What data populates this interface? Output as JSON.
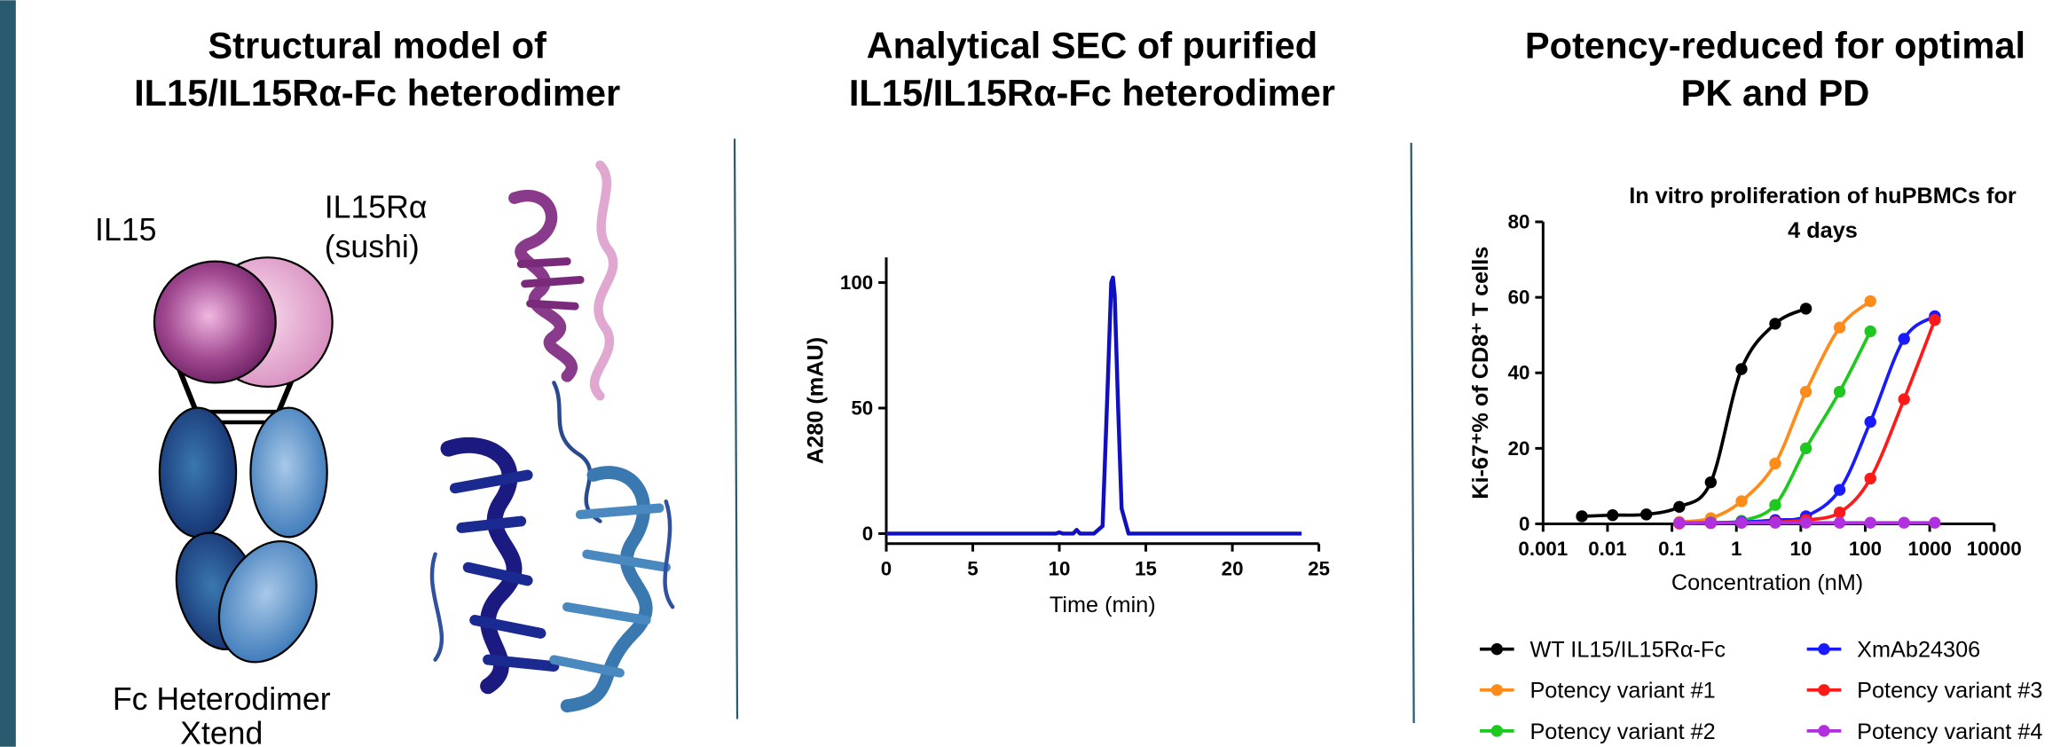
{
  "panels": [
    {
      "title": [
        "Structural model of",
        "IL15/IL15Rα-Fc heterodimer"
      ],
      "labels": {
        "il15": "IL15",
        "il15ra": "IL15Rα",
        "sushi": "(sushi)",
        "fc": "Fc Heterodimer",
        "xtend": "Xtend"
      }
    },
    {
      "title": [
        "Analytical SEC of purified",
        "IL15/IL15Rα-Fc heterodimer"
      ]
    },
    {
      "title": [
        "Potency-reduced for optimal",
        "PK and PD"
      ]
    }
  ],
  "chart_data": [
    {
      "type": "line",
      "xlabel": "Time (min)",
      "ylabel": "A280 (mAU)",
      "color": "#1010c0",
      "x": [
        0,
        5,
        9.8,
        10,
        10.2,
        10.8,
        11,
        11.2,
        12,
        12.5,
        12.8,
        13,
        13.1,
        13.2,
        13.4,
        13.6,
        14,
        15,
        20,
        24
      ],
      "values": [
        0,
        0,
        0,
        0.5,
        0,
        0,
        1.5,
        0,
        0,
        3,
        60,
        100,
        102,
        95,
        50,
        10,
        0,
        0,
        0,
        0
      ],
      "xlim": [
        0,
        25
      ],
      "xticks": [
        0,
        5,
        10,
        15,
        20,
        25
      ],
      "ylim": [
        -4,
        110
      ],
      "yticks": [
        0,
        50,
        100
      ]
    },
    {
      "type": "scatter",
      "title": [
        "In vitro proliferation of huPBMCs for",
        "4 days"
      ],
      "xlabel": "Concentration (nM)",
      "ylabel": "Ki-67⁺% of CD8⁺ T cells",
      "xscale": "log",
      "xlim": [
        0.001,
        10000
      ],
      "xticks": [
        0.001,
        0.01,
        0.1,
        1,
        10,
        100,
        1000,
        10000
      ],
      "ylim": [
        0,
        80
      ],
      "yticks": [
        0,
        20,
        40,
        60,
        80
      ],
      "series": [
        {
          "name": "WT IL15/IL15Rα-Fc",
          "color": "#000000",
          "x": [
            0.004,
            0.012,
            0.04,
            0.13,
            0.4,
            1.2,
            4,
            12
          ],
          "values": [
            2,
            2.3,
            2.5,
            4.5,
            11,
            41,
            53,
            57
          ]
        },
        {
          "name": "Potency variant #1",
          "color": "#ff8c1a",
          "x": [
            0.13,
            0.4,
            1.2,
            4,
            12,
            40,
            120
          ],
          "values": [
            0.5,
            1.5,
            6,
            16,
            35,
            52,
            59
          ]
        },
        {
          "name": "Potency variant #2",
          "color": "#1ec81e",
          "x": [
            0.13,
            0.4,
            1.2,
            4,
            12,
            40,
            120
          ],
          "values": [
            0.2,
            0.4,
            0.8,
            5,
            20,
            35,
            51
          ]
        },
        {
          "name": "XmAb24306",
          "color": "#1a1aff",
          "x": [
            0.13,
            0.4,
            1.2,
            4,
            12,
            40,
            120,
            400,
            1200
          ],
          "values": [
            0.2,
            0.3,
            0.5,
            1,
            2,
            9,
            27,
            49,
            55
          ]
        },
        {
          "name": "Potency variant #3",
          "color": "#ff1a1a",
          "x": [
            0.13,
            0.4,
            1.2,
            4,
            12,
            40,
            120,
            400,
            1200
          ],
          "values": [
            0.1,
            0.2,
            0.3,
            0.5,
            1,
            3,
            12,
            33,
            54
          ]
        },
        {
          "name": "Potency variant #4",
          "color": "#b030e0",
          "x": [
            0.13,
            0.4,
            1.2,
            4,
            12,
            40,
            120,
            400,
            1200
          ],
          "values": [
            0.3,
            0.3,
            0.3,
            0.3,
            0.3,
            0.3,
            0.3,
            0.3,
            0.3
          ]
        }
      ]
    }
  ]
}
